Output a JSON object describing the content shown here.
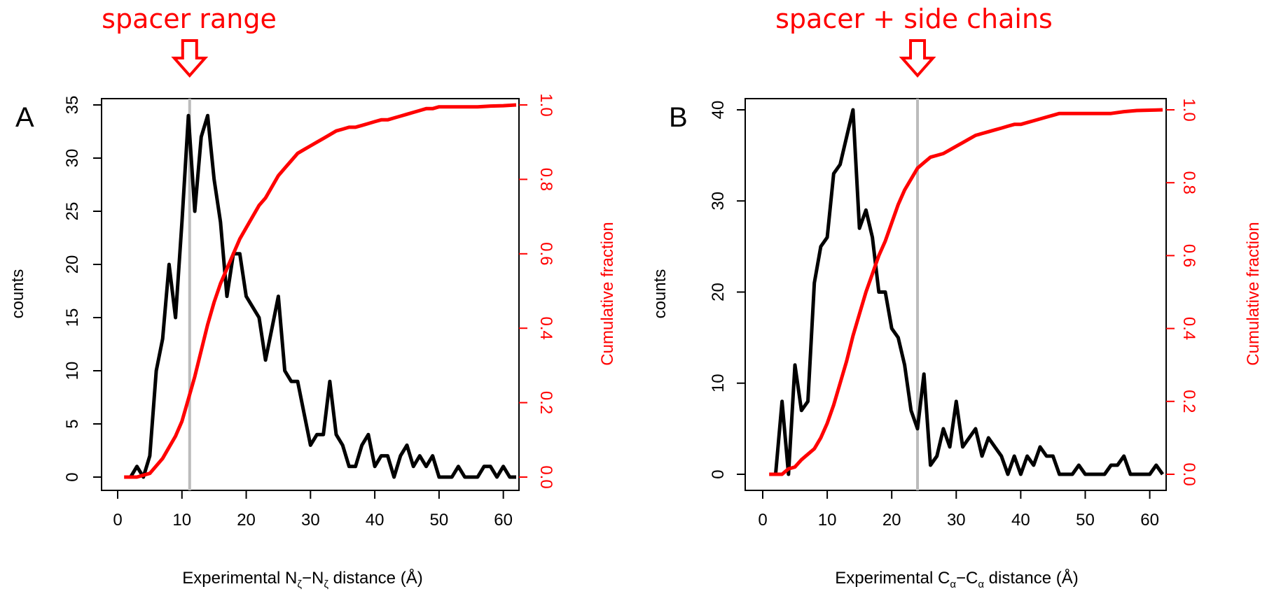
{
  "annotations": {
    "a": "spacer range",
    "b": "spacer + side chains"
  },
  "colors": {
    "counts_line": "#000000",
    "cumulative_line": "#ff0000",
    "marker_line": "#bbbbbb",
    "annotation": "#ff0000"
  },
  "chart_data": [
    {
      "type": "line",
      "panel": "A",
      "xlabel": {
        "prefix": "Experimental N",
        "sub1": "ζ",
        "mid": "−N",
        "sub2": "ζ",
        "suffix": " distance (Å)"
      },
      "ylabel": "counts",
      "y2label": "Cumulative fraction",
      "xlim": [
        0,
        62
      ],
      "ylim": [
        0,
        35
      ],
      "y2lim": [
        0,
        1
      ],
      "xticks": [
        0,
        10,
        20,
        30,
        40,
        50,
        60
      ],
      "yticks": [
        0,
        5,
        10,
        15,
        20,
        25,
        30,
        35
      ],
      "y2ticks": [
        "0.0",
        "0.2",
        "0.4",
        "0.6",
        "0.8",
        "1.0"
      ],
      "marker_x": 11.2,
      "annotation_x": 11.2,
      "series": [
        {
          "axis": "left",
          "x": [
            2,
            3,
            4,
            5,
            6,
            7,
            8,
            9,
            10,
            11,
            12,
            13,
            14,
            15,
            16,
            17,
            18,
            19,
            20,
            21,
            22,
            23,
            24,
            25,
            26,
            27,
            28,
            29,
            30,
            31,
            32,
            33,
            34,
            35,
            36,
            37,
            38,
            39,
            40,
            41,
            42,
            43,
            44,
            45,
            46,
            47,
            48,
            49,
            50,
            51,
            52,
            53,
            54,
            55,
            56,
            57,
            58,
            59,
            60,
            61,
            62
          ],
          "values": [
            0,
            1,
            0,
            2,
            10,
            13,
            20,
            15,
            24,
            34,
            25,
            32,
            34,
            28,
            24,
            17,
            21,
            21,
            17,
            16,
            15,
            11,
            14,
            17,
            10,
            9,
            9,
            6,
            3,
            4,
            4,
            9,
            4,
            3,
            1,
            1,
            3,
            4,
            1,
            2,
            2,
            0,
            2,
            3,
            1,
            2,
            1,
            2,
            0,
            0,
            0,
            1,
            0,
            0,
            0,
            1,
            1,
            0,
            1,
            0,
            0
          ]
        },
        {
          "axis": "right",
          "x": [
            1,
            2,
            3,
            4,
            5,
            6,
            7,
            8,
            9,
            10,
            11,
            12,
            13,
            14,
            15,
            16,
            17,
            18,
            19,
            20,
            21,
            22,
            23,
            24,
            25,
            26,
            27,
            28,
            29,
            30,
            31,
            32,
            33,
            34,
            35,
            36,
            37,
            38,
            39,
            40,
            41,
            42,
            43,
            44,
            45,
            46,
            47,
            48,
            49,
            50,
            52,
            54,
            56,
            58,
            60,
            62
          ],
          "values": [
            0,
            0,
            0,
            0.005,
            0.01,
            0.03,
            0.05,
            0.08,
            0.11,
            0.15,
            0.21,
            0.27,
            0.34,
            0.41,
            0.47,
            0.52,
            0.56,
            0.6,
            0.64,
            0.67,
            0.7,
            0.73,
            0.75,
            0.78,
            0.81,
            0.83,
            0.85,
            0.87,
            0.88,
            0.89,
            0.9,
            0.91,
            0.92,
            0.93,
            0.935,
            0.94,
            0.94,
            0.945,
            0.95,
            0.955,
            0.96,
            0.96,
            0.965,
            0.97,
            0.975,
            0.98,
            0.985,
            0.99,
            0.99,
            0.995,
            0.995,
            0.995,
            0.995,
            0.997,
            0.998,
            1.0
          ]
        }
      ]
    },
    {
      "type": "line",
      "panel": "B",
      "xlabel": {
        "prefix": "Experimental C",
        "sub1": "α",
        "mid": "−C",
        "sub2": "α",
        "suffix": " distance (Å)"
      },
      "ylabel": "counts",
      "y2label": "Cumulative fraction",
      "xlim": [
        0,
        62
      ],
      "ylim": [
        0,
        40
      ],
      "y2lim": [
        0,
        1
      ],
      "xticks": [
        0,
        10,
        20,
        30,
        40,
        50,
        60
      ],
      "yticks": [
        0,
        10,
        20,
        30,
        40
      ],
      "y2ticks": [
        "0.0",
        "0.2",
        "0.4",
        "0.6",
        "0.8",
        "1.0"
      ],
      "marker_x": 24,
      "annotation_x": 24,
      "series": [
        {
          "axis": "left",
          "x": [
            2,
            3,
            4,
            5,
            6,
            7,
            8,
            9,
            10,
            11,
            12,
            13,
            14,
            15,
            16,
            17,
            18,
            19,
            20,
            21,
            22,
            23,
            24,
            25,
            26,
            27,
            28,
            29,
            30,
            31,
            32,
            33,
            34,
            35,
            36,
            37,
            38,
            39,
            40,
            41,
            42,
            43,
            44,
            45,
            46,
            47,
            48,
            49,
            50,
            51,
            52,
            53,
            54,
            55,
            56,
            57,
            58,
            59,
            60,
            61,
            62
          ],
          "values": [
            0,
            8,
            0,
            12,
            7,
            8,
            21,
            25,
            26,
            33,
            34,
            37,
            40,
            27,
            29,
            26,
            20,
            20,
            16,
            15,
            12,
            7,
            5,
            11,
            1,
            2,
            5,
            3,
            8,
            3,
            4,
            5,
            2,
            4,
            3,
            2,
            0,
            2,
            0,
            2,
            1,
            3,
            2,
            2,
            0,
            0,
            0,
            1,
            0,
            0,
            0,
            0,
            1,
            1,
            2,
            0,
            0,
            0,
            0,
            1,
            0
          ]
        },
        {
          "axis": "right",
          "x": [
            1,
            2,
            3,
            4,
            5,
            6,
            7,
            8,
            9,
            10,
            11,
            12,
            13,
            14,
            15,
            16,
            17,
            18,
            19,
            20,
            21,
            22,
            23,
            24,
            25,
            26,
            27,
            28,
            29,
            30,
            31,
            32,
            33,
            34,
            35,
            36,
            37,
            38,
            39,
            40,
            41,
            42,
            43,
            44,
            45,
            46,
            47,
            48,
            49,
            50,
            52,
            54,
            56,
            58,
            60,
            62
          ],
          "values": [
            0,
            0,
            0,
            0.015,
            0.02,
            0.04,
            0.055,
            0.07,
            0.1,
            0.14,
            0.19,
            0.25,
            0.31,
            0.38,
            0.44,
            0.5,
            0.55,
            0.6,
            0.64,
            0.69,
            0.74,
            0.78,
            0.81,
            0.84,
            0.855,
            0.87,
            0.875,
            0.88,
            0.89,
            0.9,
            0.91,
            0.92,
            0.93,
            0.935,
            0.94,
            0.945,
            0.95,
            0.955,
            0.96,
            0.96,
            0.965,
            0.97,
            0.975,
            0.98,
            0.985,
            0.99,
            0.99,
            0.99,
            0.99,
            0.99,
            0.99,
            0.99,
            0.995,
            0.998,
            0.999,
            1.0
          ]
        }
      ]
    }
  ]
}
